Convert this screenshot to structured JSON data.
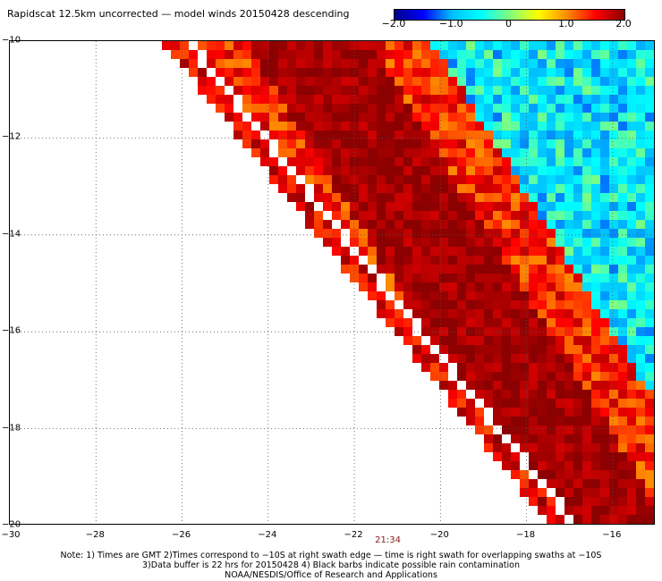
{
  "title": "Rapidscat 12.5km uncorrected — model winds 20150428 descending",
  "colorbar": {
    "labels": [
      "−2.0",
      "−1.0",
      "0",
      "1.0",
      "2.0"
    ],
    "values": [
      -2.0,
      -1.0,
      0,
      1.0,
      2.0
    ],
    "range": [
      -2.0,
      2.0
    ],
    "colormap": [
      "#00008b",
      "#0000ff",
      "#00bfff",
      "#00ffff",
      "#7fff7f",
      "#ffff00",
      "#ff8c00",
      "#ff0000",
      "#8b0000"
    ]
  },
  "map": {
    "lat_range": [
      -20,
      -10
    ],
    "lon_range": [
      -30,
      -15
    ],
    "lat_labels": [
      "−10",
      "−12",
      "−14",
      "−16",
      "−18",
      "−20"
    ],
    "lat_values": [
      -10,
      -12,
      -14,
      -16,
      -18,
      -20
    ],
    "lon_labels": [
      "−30",
      "−28",
      "−26",
      "−24",
      "−22",
      "−20",
      "−18",
      "−16"
    ],
    "lon_values": [
      -30,
      -28,
      -26,
      -24,
      -22,
      -20,
      -18,
      -16
    ],
    "grid_style": "dotted",
    "time_label": "21:34",
    "time_lon": -21.2
  },
  "notes": [
    "Note: 1) Times are GMT 2)Times correspond to −10S at right swath edge — time is right swath for overlapping swaths at −10S",
    "3)Data buffer is 22 hrs for 20150428 4) Black barbs indicate possible rain contamination",
    "NOAA/NESDIS/Office of Research and Applications"
  ]
}
